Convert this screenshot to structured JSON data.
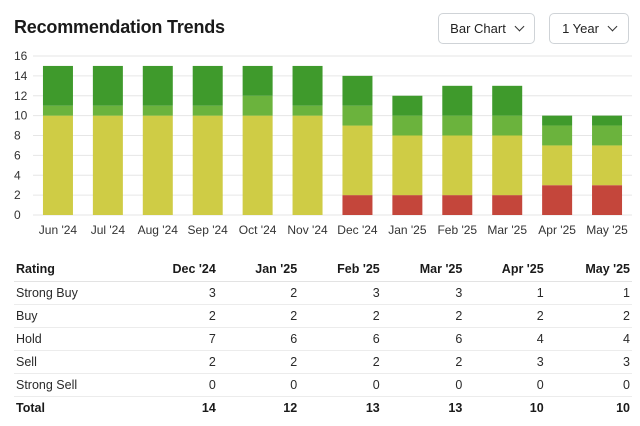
{
  "header": {
    "title": "Recommendation Trends",
    "chart_type_label": "Bar Chart",
    "period_label": "1 Year"
  },
  "colors": {
    "strong_buy": "#3f9a2c",
    "buy": "#6bb33d",
    "hold": "#cfcc45",
    "sell": "#c4463b",
    "strong_sell": "#8e1f1a",
    "grid": "#e6e6e6"
  },
  "chart_data": {
    "type": "bar",
    "stacked": true,
    "categories": [
      "Jun '24",
      "Jul '24",
      "Aug '24",
      "Sep '24",
      "Oct '24",
      "Nov '24",
      "Dec '24",
      "Jan '25",
      "Feb '25",
      "Mar '25",
      "Apr '25",
      "May '25"
    ],
    "series": [
      {
        "key": "strong_sell",
        "values": [
          0,
          0,
          0,
          0,
          0,
          0,
          0,
          0,
          0,
          0,
          0,
          0
        ]
      },
      {
        "key": "sell",
        "values": [
          0,
          0,
          0,
          0,
          0,
          0,
          2,
          2,
          2,
          2,
          3,
          3
        ]
      },
      {
        "key": "hold",
        "values": [
          10,
          10,
          10,
          10,
          10,
          10,
          7,
          6,
          6,
          6,
          4,
          4
        ]
      },
      {
        "key": "buy",
        "values": [
          1,
          1,
          1,
          1,
          2,
          1,
          2,
          2,
          2,
          2,
          2,
          2
        ]
      },
      {
        "key": "strong_buy",
        "values": [
          4,
          4,
          4,
          4,
          3,
          4,
          3,
          2,
          3,
          3,
          1,
          1
        ]
      }
    ],
    "yticks": [
      "0",
      "2",
      "4",
      "6",
      "8",
      "10",
      "12",
      "14",
      "16"
    ],
    "ylim": [
      0,
      16
    ],
    "grid": true,
    "legend": "none"
  },
  "table": {
    "header": [
      "Rating",
      "Dec '24",
      "Jan '25",
      "Feb '25",
      "Mar '25",
      "Apr '25",
      "May '25"
    ],
    "rows": [
      {
        "label": "Strong Buy",
        "values": [
          "3",
          "2",
          "3",
          "3",
          "1",
          "1"
        ]
      },
      {
        "label": "Buy",
        "values": [
          "2",
          "2",
          "2",
          "2",
          "2",
          "2"
        ]
      },
      {
        "label": "Hold",
        "values": [
          "7",
          "6",
          "6",
          "6",
          "4",
          "4"
        ]
      },
      {
        "label": "Sell",
        "values": [
          "2",
          "2",
          "2",
          "2",
          "3",
          "3"
        ]
      },
      {
        "label": "Strong Sell",
        "values": [
          "0",
          "0",
          "0",
          "0",
          "0",
          "0"
        ]
      }
    ],
    "total": {
      "label": "Total",
      "values": [
        "14",
        "12",
        "13",
        "13",
        "10",
        "10"
      ]
    }
  }
}
